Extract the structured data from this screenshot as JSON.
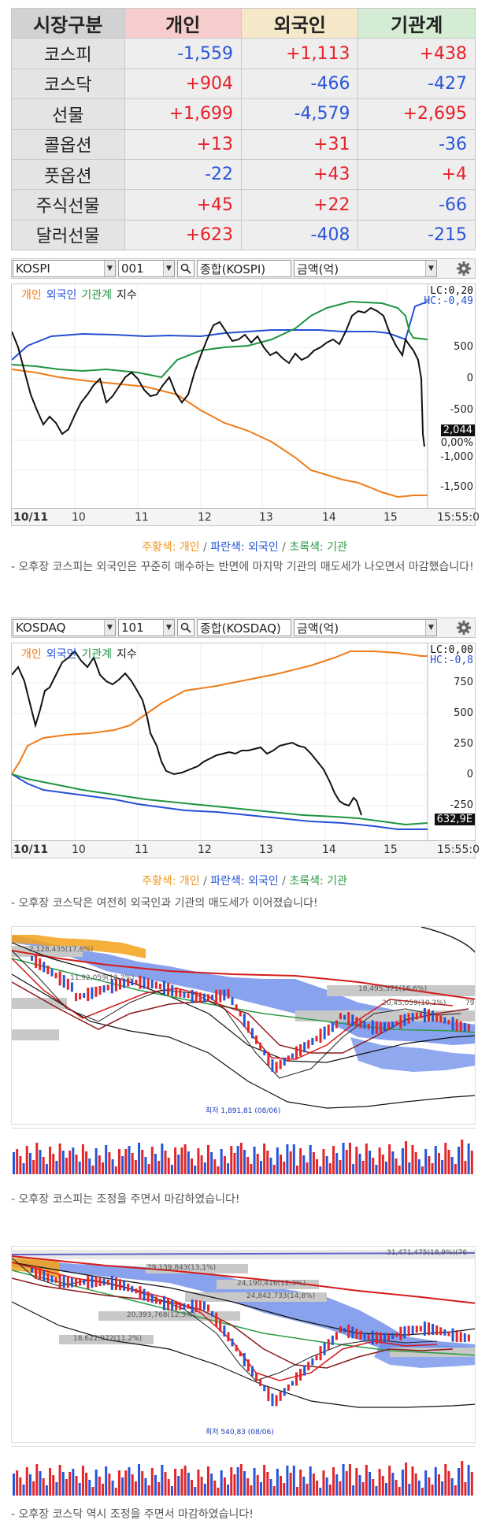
{
  "flow_table": {
    "headers": [
      "시장구분",
      "개인",
      "외국인",
      "기관계"
    ],
    "rows": [
      {
        "label": "코스피",
        "values": [
          "-1,559",
          "+1,113",
          "+438"
        ]
      },
      {
        "label": "코스닥",
        "values": [
          "+904",
          "-466",
          "-427"
        ]
      },
      {
        "label": "선물",
        "values": [
          "+1,699",
          "-4,579",
          "+2,695"
        ]
      },
      {
        "label": "콜옵션",
        "values": [
          "+13",
          "+31",
          "-36"
        ]
      },
      {
        "label": "풋옵션",
        "values": [
          "-22",
          "+43",
          "+4"
        ]
      },
      {
        "label": "주식선물",
        "values": [
          "+45",
          "+22",
          "-66"
        ]
      },
      {
        "label": "달러선물",
        "values": [
          "+623",
          "-408",
          "-215"
        ]
      }
    ]
  },
  "kospi_panel": {
    "market": "KOSPI",
    "code": "001",
    "name": "종합(KOSPI)",
    "unit": "금액(억)",
    "legend": {
      "individual": "개인",
      "foreign": "외국인",
      "institution": "기관계",
      "index": "지수"
    },
    "lc_label": "LC:0,20",
    "hc_label": "HC:-0,49",
    "y_ticks": [
      "500",
      "0",
      "-500",
      "-1,000",
      "-1,500"
    ],
    "last_value": "2,044",
    "pct": "0,00%",
    "x_labels": [
      "10/11",
      "10",
      "11",
      "12",
      "13",
      "14",
      "15",
      "15:55:0"
    ]
  },
  "kospi_color_legend": {
    "orange": "주황색: 개인",
    "sep1": " / ",
    "blue": "파란색: 외국인",
    "sep2": " / ",
    "green": "초록색: 기관"
  },
  "kospi_comment": "- 오후장 코스피는 외국인은 꾸준히 매수하는 반면에 마지막 기관의 매도세가 나오면서 마감했습니다!",
  "kosdaq_panel": {
    "market": "KOSDAQ",
    "code": "101",
    "name": "종합(KOSDAQ)",
    "unit": "금액(억)",
    "legend": {
      "individual": "개인",
      "foreign": "외국인",
      "institution": "기관계",
      "index": "지수"
    },
    "lc_label": "LC:0,00",
    "hc_label": "HC:-0,8",
    "y_ticks": [
      "750",
      "500",
      "250",
      "0",
      "-250"
    ],
    "last_value": "632,9E",
    "x_labels": [
      "10/11",
      "10",
      "11",
      "12",
      "13",
      "14",
      "15",
      "15:55:0"
    ]
  },
  "kosdaq_color_legend": {
    "orange": "주황색: 개인",
    "sep1": " / ",
    "blue": "파란색: 외국인",
    "sep2": " / ",
    "green": "초록색: 기관"
  },
  "kosdaq_comment": "- 오후장 코스닥은 여전히 외국인과 기관의 매도세가 이어졌습니다!",
  "kospi_daily": {
    "annotations": [
      "2,128,435(17,6%)",
      "11,92,059(12,2%)",
      "18,495,571(16,6%)",
      "20,45,059(10,2%)",
      "79",
      "최저 1,891,81 (08/06)"
    ]
  },
  "kospi_daily_comment": "- 오후장 코스피는 조정을 주면서 마감하였습니다!",
  "kosdaq_daily": {
    "annotations": [
      "31,471,475(18,9%)(76",
      "29,139,843(13,1%)",
      "24,190,416(12,3%)",
      "24,842,733(14,8%)",
      "20,393,768(12,3%)",
      "18,622,972(11,2%)",
      "최저 540,83 (08/06)"
    ]
  },
  "kosdaq_daily_comment": "- 오후장 코스닥 역시 조정을 주면서 마감하였습니다!",
  "colors": {
    "positive": "#e8202a",
    "negative": "#2a56d8",
    "individual": "#ee7c1a",
    "foreign": "#2450d6",
    "institution": "#1e9540"
  }
}
